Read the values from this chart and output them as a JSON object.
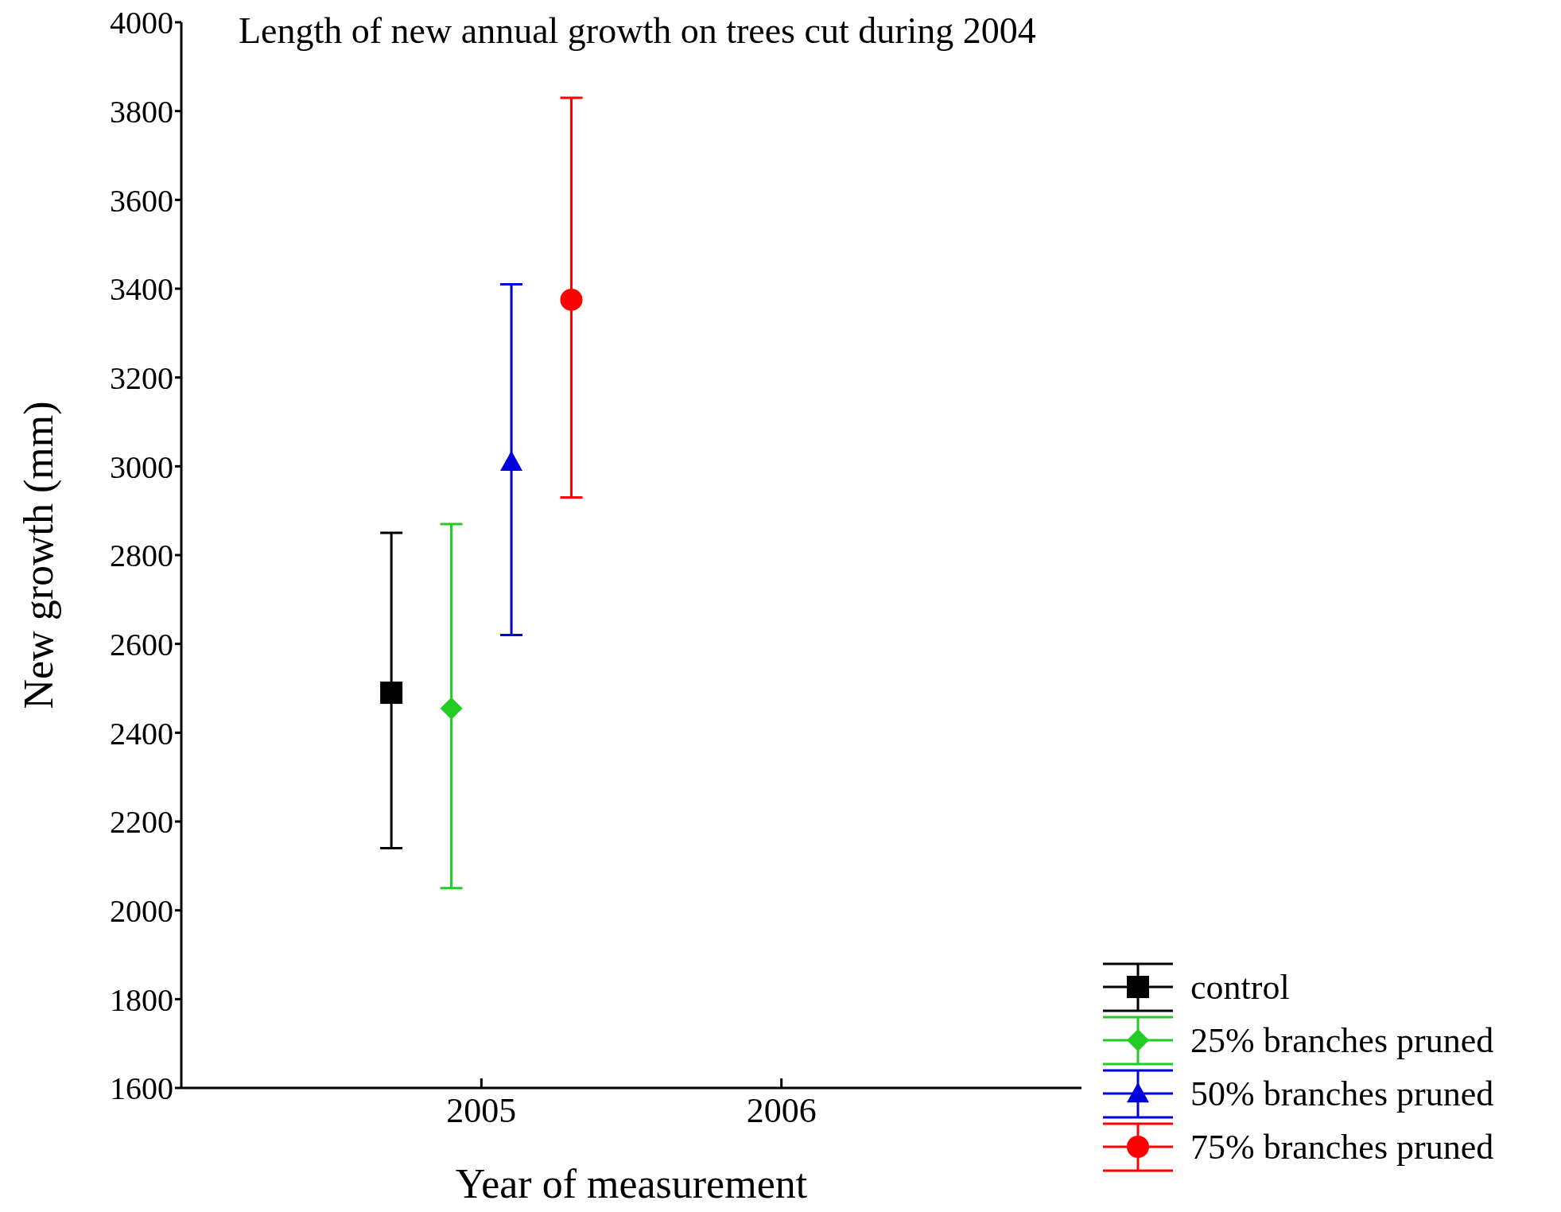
{
  "chart_data": {
    "type": "scatter",
    "title": "Length of new annual growth on trees cut during 2004",
    "xlabel": "Year of measurement",
    "ylabel": "New growth (mm)",
    "xlim": [
      2004,
      2007
    ],
    "xticks": [
      2005,
      2006
    ],
    "ylim": [
      1600,
      4000
    ],
    "yticks": [
      1600,
      1800,
      2000,
      2200,
      2400,
      2600,
      2800,
      3000,
      3200,
      3400,
      3600,
      3800,
      4000
    ],
    "grid": false,
    "legend": "bottom right",
    "series": [
      {
        "name": "control",
        "color": "#000000",
        "marker": "square",
        "x": [
          2004.7
        ],
        "values": [
          2490
        ],
        "errors": [
          [
            2140,
            2850
          ]
        ]
      },
      {
        "name": "25% branches pruned",
        "color": "#22cc22",
        "marker": "diamond",
        "x": [
          2004.9
        ],
        "values": [
          2455
        ],
        "errors": [
          [
            2050,
            2870
          ]
        ]
      },
      {
        "name": "50% branches pruned",
        "color": "#0000dd",
        "marker": "triangle",
        "x": [
          2005.1
        ],
        "values": [
          3010
        ],
        "errors": [
          [
            2620,
            3410
          ]
        ]
      },
      {
        "name": "75% branches pruned",
        "color": "#ff0000",
        "marker": "circle",
        "x": [
          2005.3
        ],
        "values": [
          3375
        ],
        "errors": [
          [
            2930,
            3830
          ]
        ]
      }
    ]
  }
}
